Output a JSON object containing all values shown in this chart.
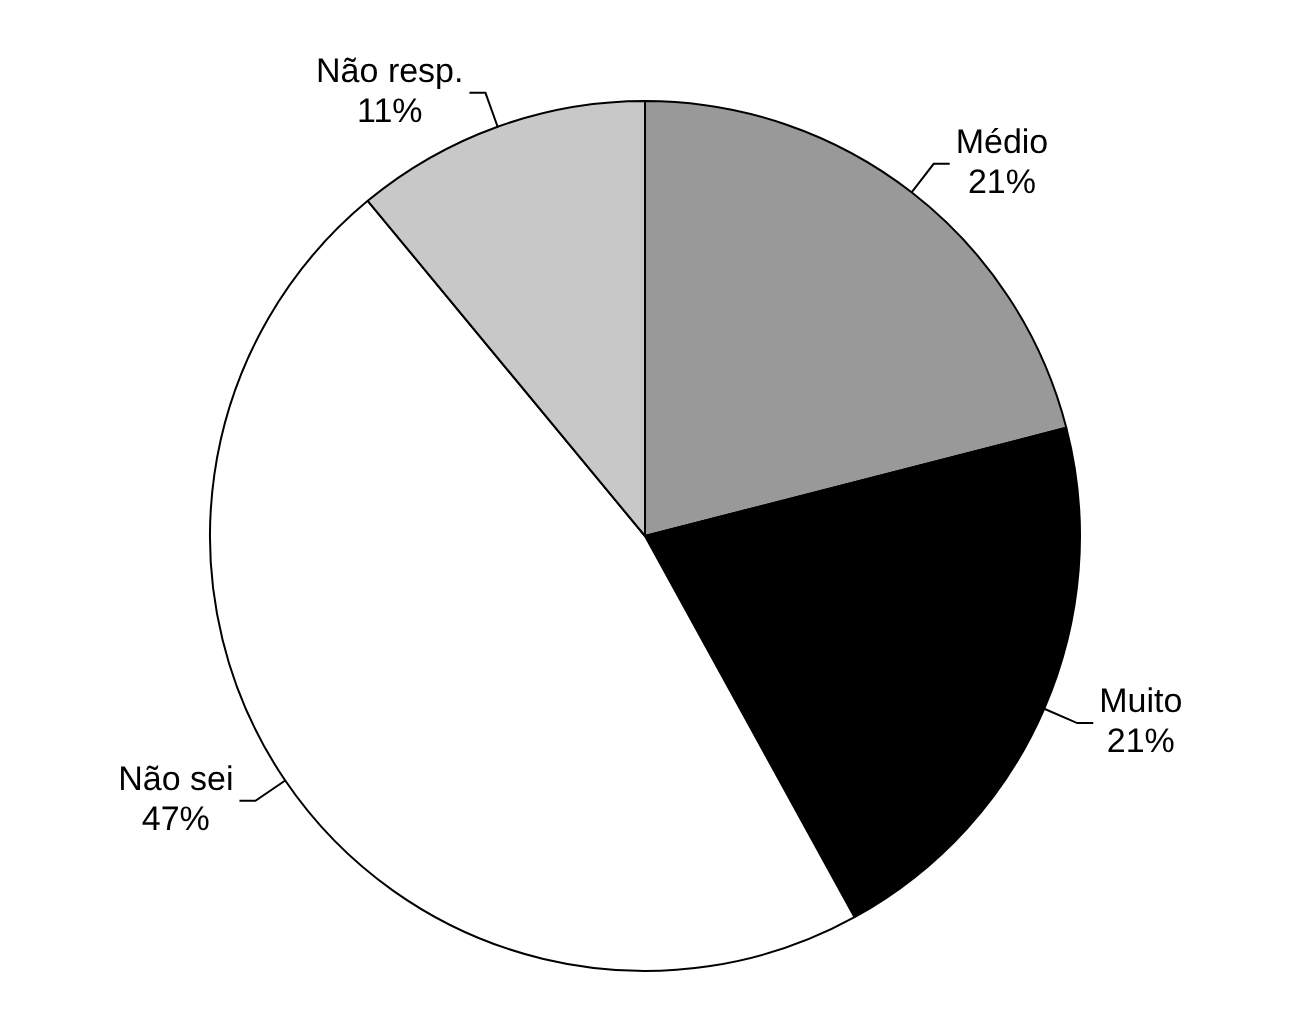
{
  "chart_data": {
    "type": "pie",
    "categories": [
      "Médio",
      "Muito",
      "Não sei",
      "Não resp."
    ],
    "values": [
      21,
      21,
      47,
      11
    ],
    "colors": [
      "#999999",
      "#000000",
      "#ffffff",
      "#c8c8c8"
    ],
    "value_labels": [
      "21%",
      "21%",
      "47%",
      "11%"
    ],
    "legend": false
  }
}
